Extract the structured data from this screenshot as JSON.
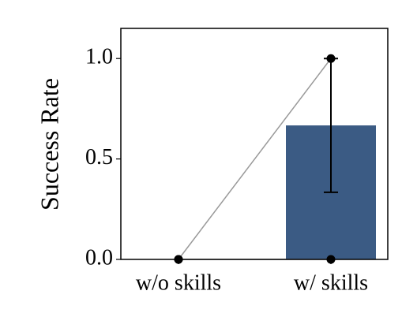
{
  "chart_data": {
    "type": "bar",
    "ylabel": "Success Rate",
    "categories": [
      "w/o skills",
      "w/ skills"
    ],
    "values": [
      0,
      0.667
    ],
    "errors": [
      0,
      0.333
    ],
    "points": [
      [
        0,
        0
      ],
      [
        1,
        0
      ]
    ],
    "color": "#3b5b84",
    "point_color": "#000000",
    "line_color": "#999999",
    "ylim": [
      0,
      1.15
    ],
    "yticks": [
      {
        "value": 0,
        "label": "0.0"
      },
      0.5,
      {
        "value": 1,
        "label": "1.0"
      }
    ],
    "grid": false
  }
}
